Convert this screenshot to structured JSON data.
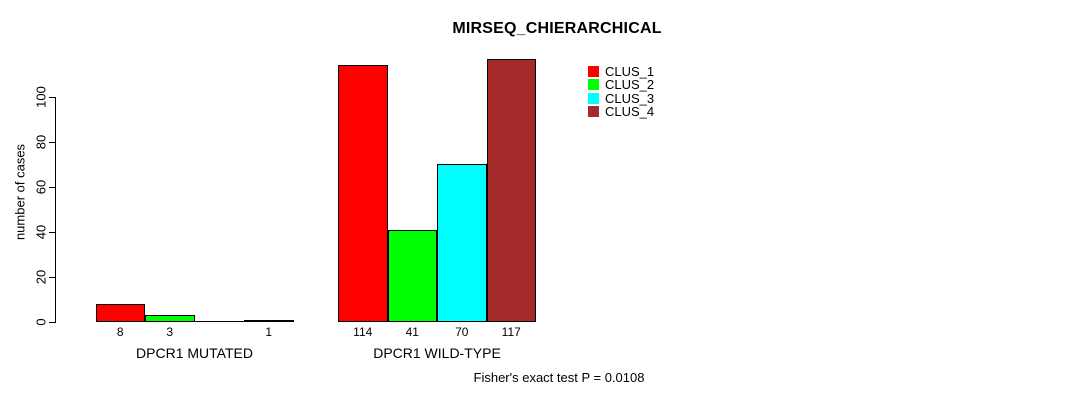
{
  "chart_data": {
    "type": "bar",
    "title": "MIRSEQ_CHIERARCHICAL",
    "xlabel": "",
    "ylabel": "number of cases",
    "categories": [
      "DPCR1 MUTATED",
      "DPCR1 WILD-TYPE"
    ],
    "series": [
      {
        "name": "CLUS_1",
        "color": "#ff0000",
        "values": [
          8,
          114
        ]
      },
      {
        "name": "CLUS_2",
        "color": "#00ff00",
        "values": [
          3,
          41
        ]
      },
      {
        "name": "CLUS_3",
        "color": "#00ffff",
        "values": [
          0,
          70
        ]
      },
      {
        "name": "CLUS_4",
        "color": "#a52a2a",
        "values": [
          1,
          117
        ]
      }
    ],
    "yticks": [
      0,
      20,
      40,
      60,
      80,
      100
    ],
    "ylim": [
      0,
      117
    ],
    "grid": false,
    "legend_position": "top-right",
    "bar_value_labels_shown": true,
    "zero_value_labels_hidden": true,
    "annotation": "Fisher's exact test P = 0.0108",
    "axis_color": "#000000",
    "bar_border_color": "#000000",
    "background_color": "#ffffff"
  }
}
